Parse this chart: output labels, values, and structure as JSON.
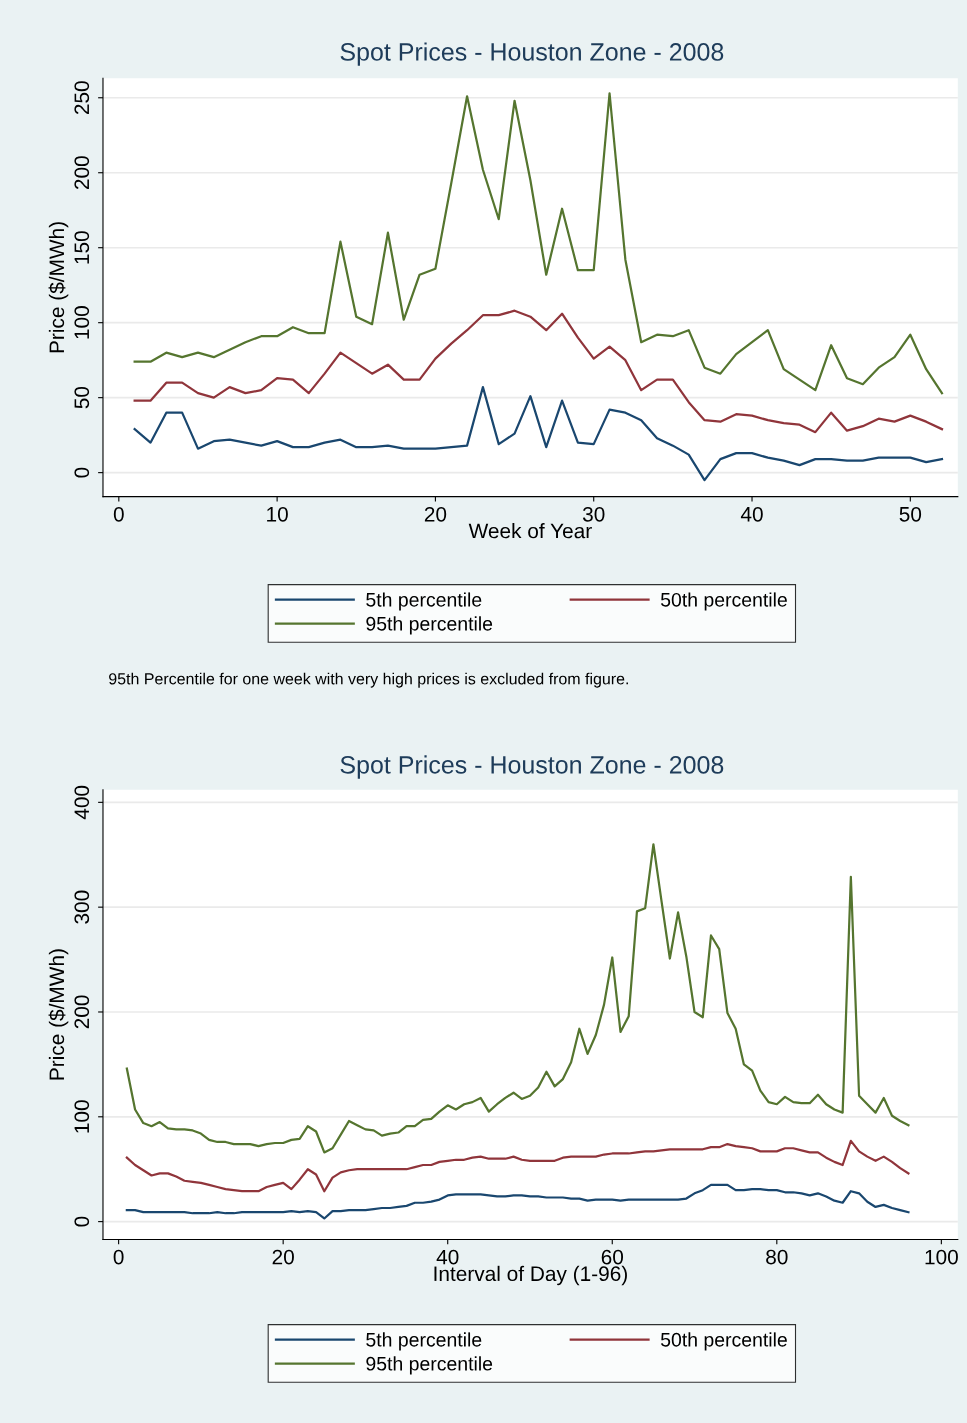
{
  "chart_data": [
    {
      "type": "line",
      "title": "Spot Prices - Houston Zone - 2008",
      "xlabel": "Week of Year",
      "ylabel": "Price ($/MWh)",
      "grid": "y",
      "legend": "bottom",
      "marker": "none",
      "line_style": "solid",
      "xlim": [
        -1,
        53
      ],
      "ylim": [
        -16,
        263
      ],
      "xticks": [
        0,
        10,
        20,
        30,
        40,
        50
      ],
      "yticks": [
        0,
        50,
        100,
        150,
        200,
        250
      ],
      "x": [
        1,
        2,
        3,
        4,
        5,
        6,
        7,
        8,
        9,
        10,
        11,
        12,
        13,
        14,
        15,
        16,
        17,
        18,
        19,
        20,
        21,
        22,
        23,
        24,
        25,
        26,
        27,
        28,
        29,
        30,
        31,
        32,
        33,
        34,
        35,
        36,
        37,
        38,
        39,
        40,
        41,
        42,
        43,
        44,
        45,
        46,
        47,
        48,
        49,
        50,
        51,
        52
      ],
      "annotations": [
        "95th Percentile for one week with very high prices is excluded from figure."
      ],
      "series": [
        {
          "name": "5th percentile",
          "color": "#1a476f",
          "values": [
            29,
            20,
            40,
            40,
            16,
            21,
            22,
            20,
            18,
            21,
            17,
            17,
            20,
            22,
            17,
            17,
            18,
            16,
            16,
            16,
            17,
            18,
            57,
            19,
            26,
            51,
            17,
            48,
            20,
            19,
            42,
            40,
            35,
            23,
            18,
            12,
            -5,
            9,
            13,
            13,
            10,
            8,
            5,
            9,
            9,
            8,
            8,
            10,
            10,
            10,
            7,
            9
          ]
        },
        {
          "name": "50th percentile",
          "color": "#90353b",
          "values": [
            48,
            48,
            60,
            60,
            53,
            50,
            57,
            53,
            55,
            63,
            62,
            53,
            66,
            80,
            73,
            66,
            72,
            62,
            62,
            76,
            86,
            95,
            105,
            105,
            108,
            104,
            95,
            106,
            90,
            76,
            84,
            75,
            55,
            62,
            62,
            47,
            35,
            34,
            39,
            38,
            35,
            33,
            32,
            27,
            40,
            28,
            31,
            36,
            34,
            38,
            34,
            29
          ]
        },
        {
          "name": "95th percentile",
          "color": "#55752f",
          "values": [
            74,
            74,
            80,
            77,
            80,
            77,
            82,
            87,
            91,
            91,
            97,
            93,
            93,
            154,
            104,
            99,
            160,
            102,
            132,
            136,
            193,
            251,
            202,
            169,
            248,
            195,
            132,
            176,
            135,
            135,
            253,
            142,
            87,
            92,
            91,
            95,
            70,
            66,
            79,
            87,
            95,
            69,
            62,
            55,
            85,
            63,
            59,
            70,
            77,
            92,
            69,
            53
          ]
        }
      ]
    },
    {
      "type": "line",
      "title": "Spot Prices - Houston Zone - 2008",
      "xlabel": "Interval of Day (1-96)",
      "ylabel": "Price ($/MWh)",
      "grid": "y",
      "legend": "bottom",
      "marker": "none",
      "line_style": "solid",
      "xlim": [
        -1.9,
        102
      ],
      "ylim": [
        -17,
        412
      ],
      "xticks": [
        0,
        20,
        40,
        60,
        80,
        100
      ],
      "yticks": [
        0,
        100,
        200,
        300,
        400
      ],
      "x": [
        1,
        2,
        3,
        4,
        5,
        6,
        7,
        8,
        9,
        10,
        11,
        12,
        13,
        14,
        15,
        16,
        17,
        18,
        19,
        20,
        21,
        22,
        23,
        24,
        25,
        26,
        27,
        28,
        29,
        30,
        31,
        32,
        33,
        34,
        35,
        36,
        37,
        38,
        39,
        40,
        41,
        42,
        43,
        44,
        45,
        46,
        47,
        48,
        49,
        50,
        51,
        52,
        53,
        54,
        55,
        56,
        57,
        58,
        59,
        60,
        61,
        62,
        63,
        64,
        65,
        66,
        67,
        68,
        69,
        70,
        71,
        72,
        73,
        74,
        75,
        76,
        77,
        78,
        79,
        80,
        81,
        82,
        83,
        84,
        85,
        86,
        87,
        88,
        89,
        90,
        91,
        92,
        93,
        94,
        95,
        96
      ],
      "series": [
        {
          "name": "5th percentile",
          "color": "#1a476f",
          "values": [
            11,
            11,
            9,
            9,
            9,
            9,
            9,
            9,
            8,
            8,
            8,
            9,
            8,
            8,
            9,
            9,
            9,
            9,
            9,
            9,
            10,
            9,
            10,
            9,
            3,
            10,
            10,
            11,
            11,
            11,
            12,
            13,
            13,
            14,
            15,
            18,
            18,
            19,
            21,
            25,
            26,
            26,
            26,
            26,
            25,
            24,
            24,
            25,
            25,
            24,
            24,
            23,
            23,
            23,
            22,
            22,
            20,
            21,
            21,
            21,
            20,
            21,
            21,
            21,
            21,
            21,
            21,
            21,
            22,
            27,
            30,
            35,
            35,
            35,
            30,
            30,
            31,
            31,
            30,
            30,
            28,
            28,
            27,
            25,
            27,
            24,
            20,
            18,
            29,
            27,
            19,
            14,
            16,
            13,
            11,
            9
          ]
        },
        {
          "name": "50th percentile",
          "color": "#90353b",
          "values": [
            61,
            54,
            49,
            44,
            46,
            46,
            43,
            39,
            38,
            37,
            35,
            33,
            31,
            30,
            29,
            29,
            29,
            33,
            35,
            37,
            31,
            40,
            50,
            45,
            29,
            42,
            47,
            49,
            50,
            50,
            50,
            50,
            50,
            50,
            50,
            52,
            54,
            54,
            57,
            58,
            59,
            59,
            61,
            62,
            60,
            60,
            60,
            62,
            59,
            58,
            58,
            58,
            58,
            61,
            62,
            62,
            62,
            62,
            64,
            65,
            65,
            65,
            66,
            67,
            67,
            68,
            69,
            69,
            69,
            69,
            69,
            71,
            71,
            74,
            72,
            71,
            70,
            67,
            67,
            67,
            70,
            70,
            68,
            66,
            66,
            61,
            57,
            54,
            77,
            67,
            62,
            58,
            62,
            57,
            51,
            46
          ]
        },
        {
          "name": "95th percentile",
          "color": "#55752f",
          "values": [
            146,
            107,
            94,
            91,
            95,
            89,
            88,
            88,
            87,
            84,
            78,
            76,
            76,
            74,
            74,
            74,
            72,
            74,
            75,
            75,
            78,
            79,
            91,
            86,
            66,
            70,
            83,
            96,
            92,
            88,
            87,
            82,
            84,
            85,
            91,
            91,
            97,
            98,
            105,
            111,
            107,
            112,
            114,
            118,
            105,
            112,
            118,
            123,
            117,
            120,
            128,
            143,
            129,
            136,
            152,
            184,
            160,
            178,
            207,
            252,
            181,
            196,
            296,
            299,
            360,
            305,
            251,
            295,
            253,
            200,
            195,
            273,
            260,
            199,
            184,
            150,
            144,
            125,
            114,
            112,
            119,
            114,
            113,
            113,
            121,
            112,
            107,
            104,
            329,
            120,
            112,
            104,
            118,
            101,
            96,
            92
          ]
        }
      ]
    }
  ]
}
